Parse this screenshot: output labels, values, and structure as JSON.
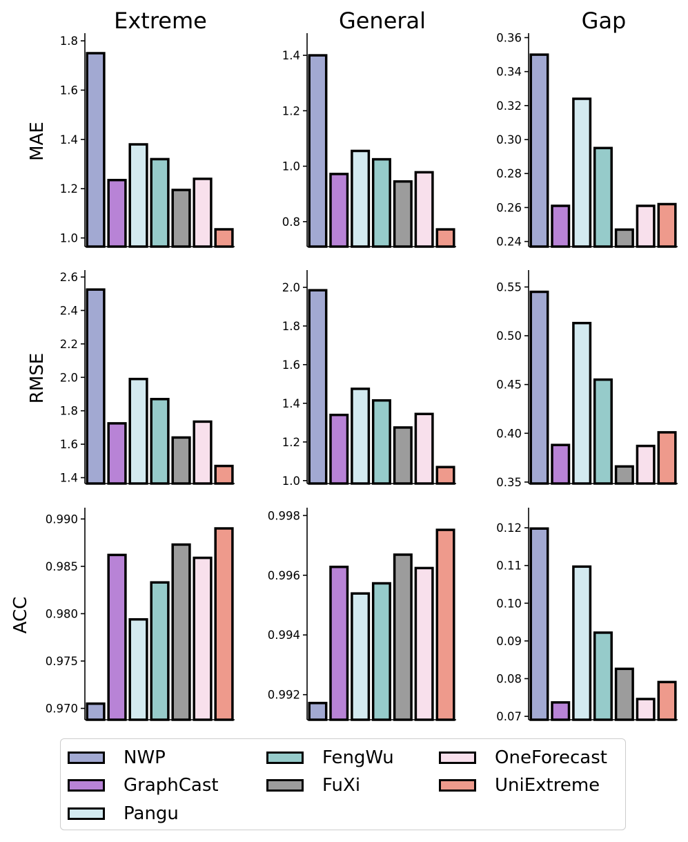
{
  "legend": {
    "items": [
      {
        "name": "NWP",
        "color": "#a2a9d2"
      },
      {
        "name": "GraphCast",
        "color": "#b883d6"
      },
      {
        "name": "Pangu",
        "color": "#d3eaf0"
      },
      {
        "name": "FengWu",
        "color": "#96cbca"
      },
      {
        "name": "FuXi",
        "color": "#9c9c9c"
      },
      {
        "name": "OneForecast",
        "color": "#f8e0ec"
      },
      {
        "name": "UniExtreme",
        "color": "#ee9a8c"
      }
    ]
  },
  "chart_data": [
    {
      "type": "bar",
      "row": "MAE",
      "column": "Extreme",
      "title": "Extreme",
      "ylabel": "MAE",
      "categories": [
        "NWP",
        "GraphCast",
        "Pangu",
        "FengWu",
        "FuXi",
        "OneForecast",
        "UniExtreme"
      ],
      "values": [
        1.75,
        1.235,
        1.38,
        1.32,
        1.195,
        1.24,
        1.035
      ],
      "ylim": [
        0.965,
        1.82
      ],
      "yticks": [
        1.0,
        1.2,
        1.4,
        1.6,
        1.8
      ],
      "ytick_labels": [
        "1.0",
        "1.2",
        "1.4",
        "1.6",
        "1.8"
      ]
    },
    {
      "type": "bar",
      "row": "MAE",
      "column": "General",
      "title": "General",
      "ylabel": "",
      "categories": [
        "NWP",
        "GraphCast",
        "Pangu",
        "FengWu",
        "FuXi",
        "OneForecast",
        "UniExtreme"
      ],
      "values": [
        1.4,
        0.972,
        1.055,
        1.025,
        0.945,
        0.978,
        0.772
      ],
      "ylim": [
        0.71,
        1.47
      ],
      "yticks": [
        0.8,
        1.0,
        1.2,
        1.4
      ],
      "ytick_labels": [
        "0.8",
        "1.0",
        "1.2",
        "1.4"
      ]
    },
    {
      "type": "bar",
      "row": "MAE",
      "column": "Gap",
      "title": "Gap",
      "ylabel": "",
      "categories": [
        "NWP",
        "GraphCast",
        "Pangu",
        "FengWu",
        "FuXi",
        "OneForecast",
        "UniExtreme"
      ],
      "values": [
        0.35,
        0.261,
        0.324,
        0.295,
        0.247,
        0.261,
        0.262
      ],
      "ylim": [
        0.237,
        0.361
      ],
      "yticks": [
        0.24,
        0.26,
        0.28,
        0.3,
        0.32,
        0.34,
        0.36
      ],
      "ytick_labels": [
        "0.24",
        "0.26",
        "0.28",
        "0.30",
        "0.32",
        "0.34",
        "0.36"
      ]
    },
    {
      "type": "bar",
      "row": "RMSE",
      "column": "Extreme",
      "title": "",
      "ylabel": "RMSE",
      "categories": [
        "NWP",
        "GraphCast",
        "Pangu",
        "FengWu",
        "FuXi",
        "OneForecast",
        "UniExtreme"
      ],
      "values": [
        2.525,
        1.725,
        1.99,
        1.87,
        1.64,
        1.735,
        1.47
      ],
      "ylim": [
        1.365,
        2.625
      ],
      "yticks": [
        1.4,
        1.6,
        1.8,
        2.0,
        2.2,
        2.4,
        2.6
      ],
      "ytick_labels": [
        "1.4",
        "1.6",
        "1.8",
        "2.0",
        "2.2",
        "2.4",
        "2.6"
      ]
    },
    {
      "type": "bar",
      "row": "RMSE",
      "column": "General",
      "title": "",
      "ylabel": "",
      "categories": [
        "NWP",
        "GraphCast",
        "Pangu",
        "FengWu",
        "FuXi",
        "OneForecast",
        "UniExtreme"
      ],
      "values": [
        1.985,
        1.34,
        1.475,
        1.415,
        1.275,
        1.345,
        1.07
      ],
      "ylim": [
        0.985,
        2.075
      ],
      "yticks": [
        1.0,
        1.2,
        1.4,
        1.6,
        1.8,
        2.0
      ],
      "ytick_labels": [
        "1.0",
        "1.2",
        "1.4",
        "1.6",
        "1.8",
        "2.0"
      ]
    },
    {
      "type": "bar",
      "row": "RMSE",
      "column": "Gap",
      "title": "",
      "ylabel": "",
      "categories": [
        "NWP",
        "GraphCast",
        "Pangu",
        "FengWu",
        "FuXi",
        "OneForecast",
        "UniExtreme"
      ],
      "values": [
        0.545,
        0.388,
        0.513,
        0.455,
        0.366,
        0.387,
        0.401
      ],
      "ylim": [
        0.3485,
        0.5645
      ],
      "yticks": [
        0.35,
        0.4,
        0.45,
        0.5,
        0.55
      ],
      "ytick_labels": [
        "0.35",
        "0.40",
        "0.45",
        "0.50",
        "0.55"
      ]
    },
    {
      "type": "bar",
      "row": "ACC",
      "column": "Extreme",
      "title": "",
      "ylabel": "ACC",
      "categories": [
        "NWP",
        "GraphCast",
        "Pangu",
        "FengWu",
        "FuXi",
        "OneForecast",
        "UniExtreme"
      ],
      "values": [
        0.9705,
        0.9862,
        0.9794,
        0.9833,
        0.9873,
        0.9859,
        0.989
      ],
      "ylim": [
        0.9688,
        0.9909
      ],
      "yticks": [
        0.97,
        0.975,
        0.98,
        0.985,
        0.99
      ],
      "ytick_labels": [
        "0.970",
        "0.975",
        "0.980",
        "0.985",
        "0.990"
      ]
    },
    {
      "type": "bar",
      "row": "ACC",
      "column": "General",
      "title": "",
      "ylabel": "",
      "categories": [
        "NWP",
        "GraphCast",
        "Pangu",
        "FengWu",
        "FuXi",
        "OneForecast",
        "UniExtreme"
      ],
      "values": [
        0.99172,
        0.99628,
        0.99539,
        0.99573,
        0.99669,
        0.99624,
        0.99752
      ],
      "ylim": [
        0.99116,
        0.99817
      ],
      "yticks": [
        0.992,
        0.994,
        0.996,
        0.998
      ],
      "ytick_labels": [
        "0.992",
        "0.994",
        "0.996",
        "0.998"
      ]
    },
    {
      "type": "bar",
      "row": "ACC",
      "column": "Gap",
      "title": "",
      "ylabel": "",
      "categories": [
        "NWP",
        "GraphCast",
        "Pangu",
        "FengWu",
        "FuXi",
        "OneForecast",
        "UniExtreme"
      ],
      "values": [
        0.1198,
        0.0737,
        0.1097,
        0.0922,
        0.0826,
        0.0746,
        0.0791
      ],
      "ylim": [
        0.0691,
        0.1246
      ],
      "yticks": [
        0.07,
        0.08,
        0.09,
        0.1,
        0.11,
        0.12
      ],
      "ytick_labels": [
        "0.07",
        "0.08",
        "0.09",
        "0.10",
        "0.11",
        "0.12"
      ]
    }
  ]
}
